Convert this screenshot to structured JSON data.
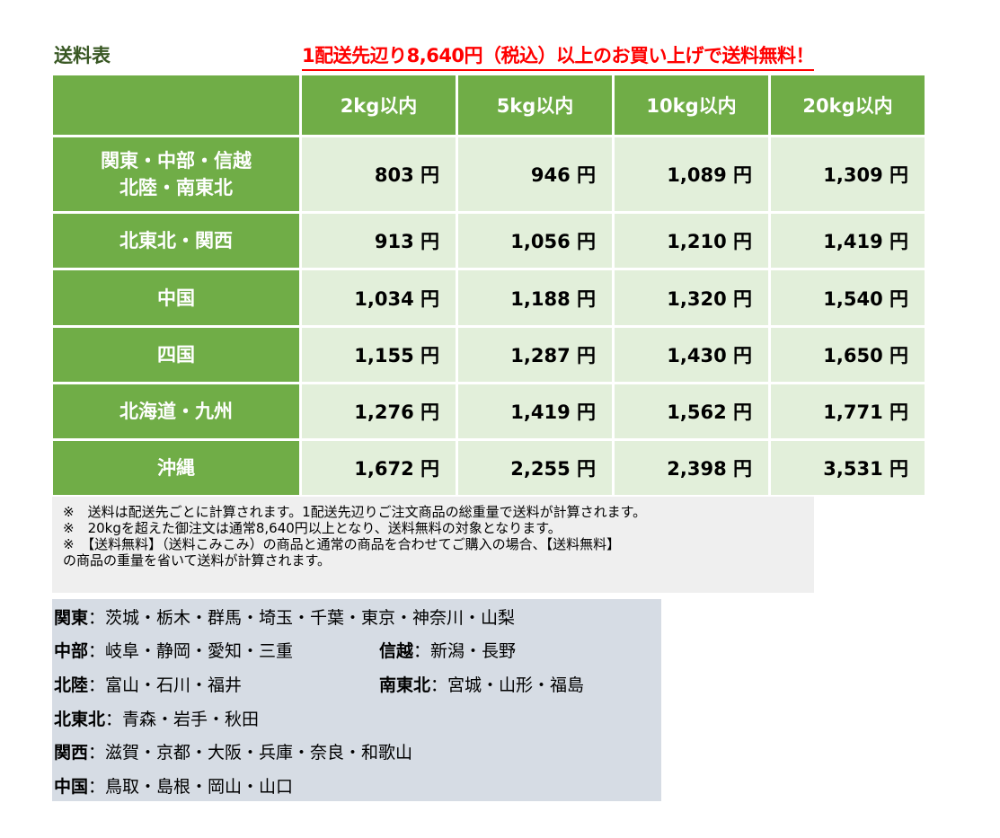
{
  "title": "送料表",
  "promo": "1配送先辺り8,640円（税込）以上のお買い上げで送料無料！",
  "colors": {
    "header_green": "#70ad47",
    "cell_green": "#e2efda",
    "promo_red": "#ff0000",
    "title_green": "#385723",
    "notes_bg": "#efefef",
    "areas_bg": "#d6dce4"
  },
  "table": {
    "headers": [
      "",
      "2kg以内",
      "5kg以内",
      "10kg以内",
      "20kg以内"
    ],
    "rows": [
      {
        "region": [
          "関東・中部・信越",
          "北陸・南東北"
        ],
        "prices": [
          "803 円",
          "946 円",
          "1,089 円",
          "1,309 円"
        ]
      },
      {
        "region": [
          "北東北・関西"
        ],
        "prices": [
          "913 円",
          "1,056 円",
          "1,210 円",
          "1,419 円"
        ]
      },
      {
        "region": [
          "中国"
        ],
        "prices": [
          "1,034 円",
          "1,188 円",
          "1,320 円",
          "1,540 円"
        ]
      },
      {
        "region": [
          "四国"
        ],
        "prices": [
          "1,155 円",
          "1,287 円",
          "1,430 円",
          "1,650 円"
        ]
      },
      {
        "region": [
          "北海道・九州"
        ],
        "prices": [
          "1,276 円",
          "1,419 円",
          "1,562 円",
          "1,771 円"
        ]
      },
      {
        "region": [
          "沖縄"
        ],
        "prices": [
          "1,672 円",
          "2,255 円",
          "2,398 円",
          "3,531 円"
        ]
      }
    ]
  },
  "notes": [
    "※　送料は配送先ごとに計算されます。1配送先辺りご注文商品の総重量で送料が計算されます。",
    "※　20kgを超えた御注文は通常8,640円以上となり、送料無料の対象となります。",
    "※　【送料無料】（送料こみこみ）の商品と通常の商品を合わせてご購入の場合、【送料無料】",
    "の商品の重量を省いて送料が計算されます。"
  ],
  "areas": [
    [
      {
        "name": "関東",
        "prefs": "：茨城・栃木・群馬・埼玉・千葉・東京・神奈川・山梨"
      }
    ],
    [
      {
        "name": "中部",
        "prefs": "：岐阜・静岡・愛知・三重"
      },
      {
        "name": "信越",
        "prefs": "：新潟・長野"
      }
    ],
    [
      {
        "name": "北陸",
        "prefs": "：富山・石川・福井"
      },
      {
        "name": "南東北",
        "prefs": "：宮城・山形・福島"
      }
    ],
    [
      {
        "name": "北東北",
        "prefs": "：青森・岩手・秋田"
      }
    ],
    [
      {
        "name": "関西",
        "prefs": "：滋賀・京都・大阪・兵庫・奈良・和歌山"
      }
    ],
    [
      {
        "name": "中国",
        "prefs": "：鳥取・島根・岡山・山口"
      }
    ]
  ]
}
